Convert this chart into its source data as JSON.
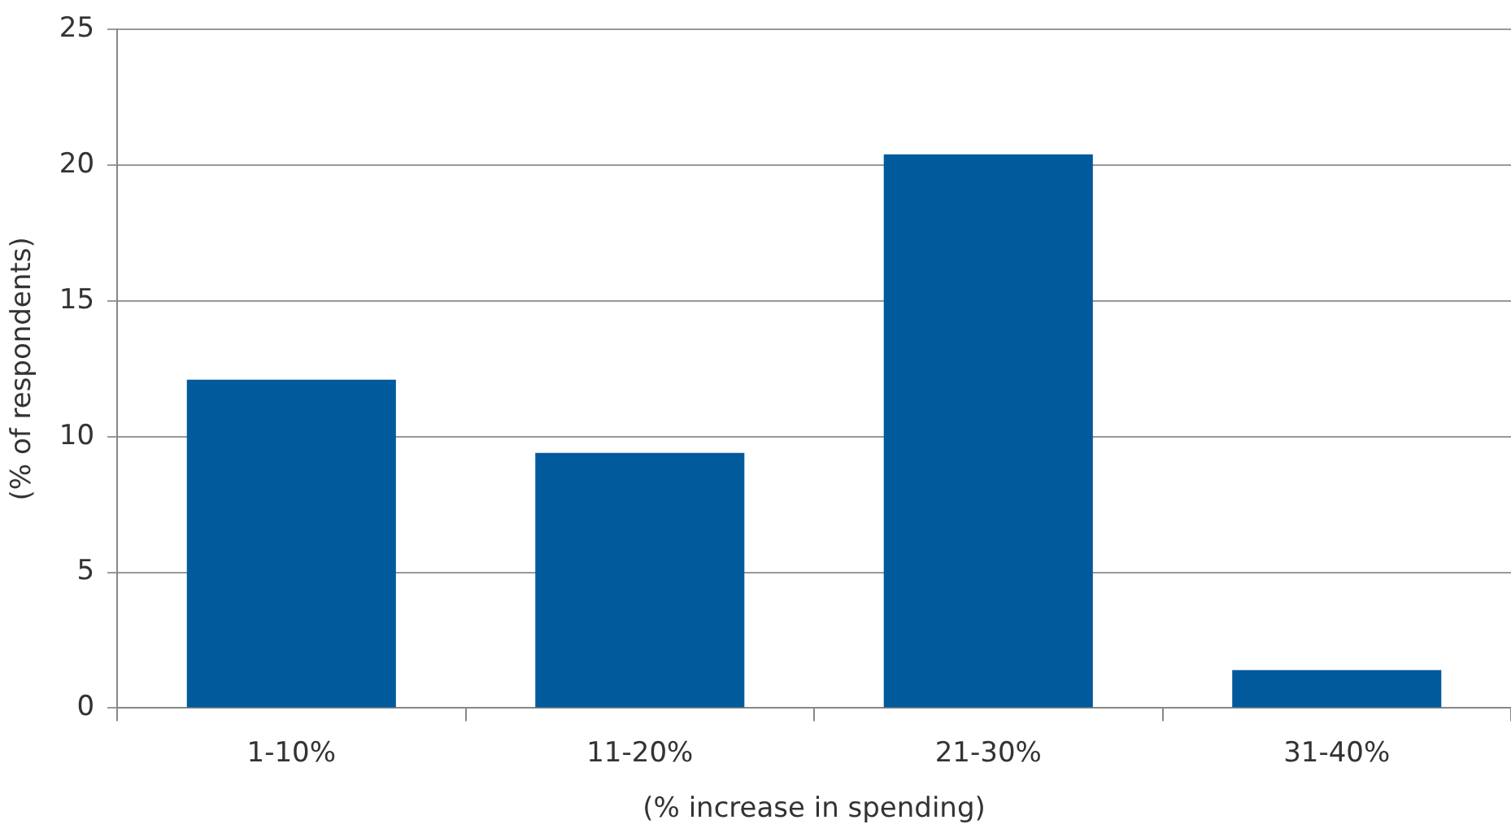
{
  "chart_data": {
    "type": "bar",
    "xlabel": "(% increase in spending)",
    "ylabel": "(% of respondents)",
    "categories": [
      "1-10%",
      "11-20%",
      "21-30%",
      "31-40%"
    ],
    "values": [
      12.1,
      9.4,
      20.4,
      1.4
    ],
    "color": "#005a9c",
    "ylim": [
      0,
      25
    ],
    "yticks": [
      0,
      5,
      10,
      15,
      20,
      25
    ],
    "grid": "y",
    "legend": false
  }
}
